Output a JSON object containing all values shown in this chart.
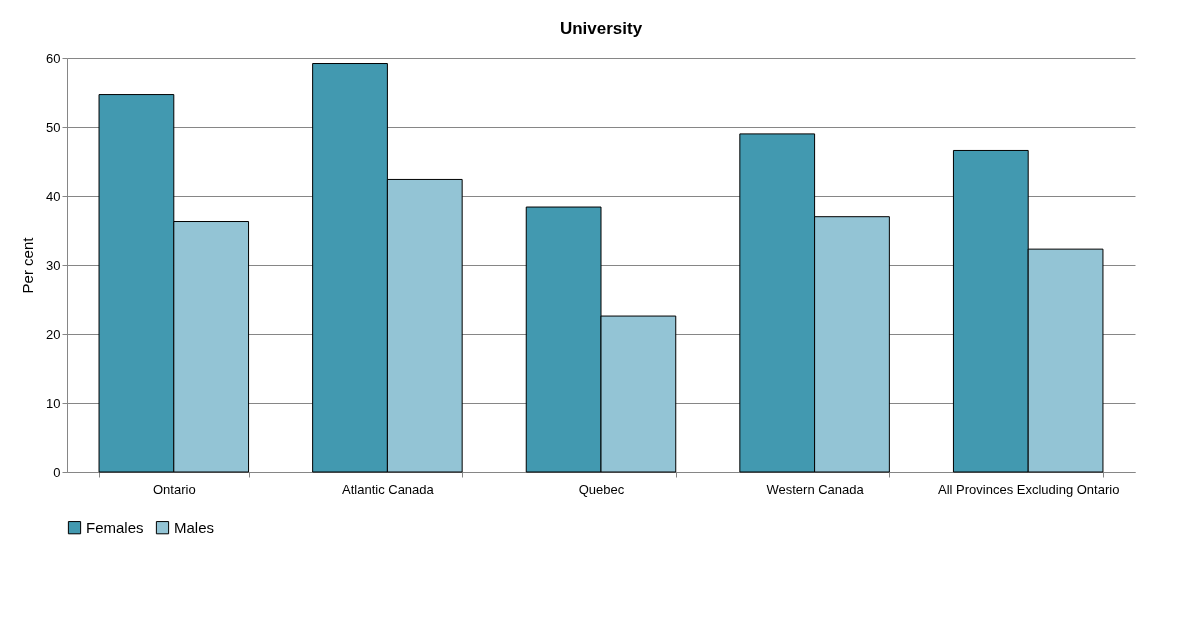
{
  "chart_data": {
    "type": "bar",
    "title": "University",
    "ylabel": "Per cent",
    "categories": [
      "Ontario",
      "Atlantic Canada",
      "Quebec",
      "Western Canada",
      "All Provinces Excluding Ontario"
    ],
    "series": [
      {
        "name": "Females",
        "color": "#4299b0",
        "values": [
          54.7,
          59.2,
          38.4,
          49.0,
          46.6
        ]
      },
      {
        "name": "Males",
        "color": "#93c4d5",
        "values": [
          36.3,
          42.4,
          22.6,
          37.0,
          32.3
        ]
      }
    ],
    "ylim": [
      0,
      60
    ],
    "yticks": [
      0,
      10,
      20,
      30,
      40,
      50,
      60
    ],
    "grid": "y",
    "legend": "bottom"
  }
}
